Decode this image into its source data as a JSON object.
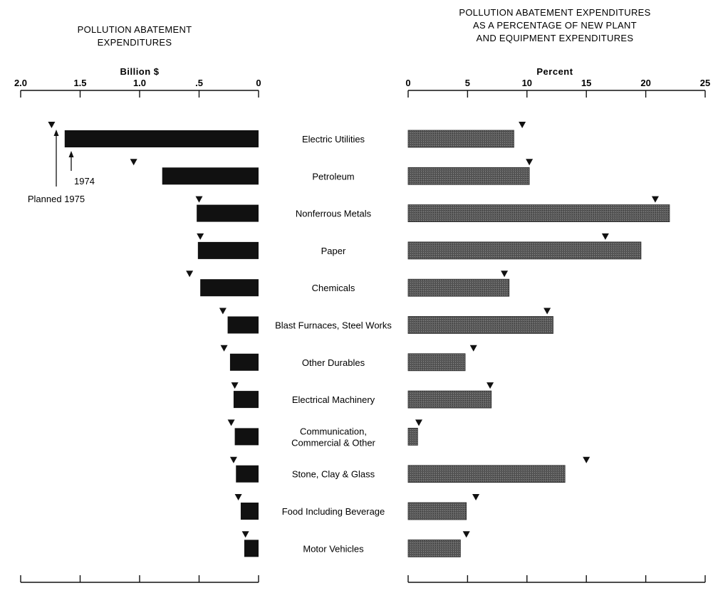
{
  "left_panel": {
    "title_lines": [
      "POLLUTION ABATEMENT",
      "EXPENDITURES"
    ]
  },
  "right_panel": {
    "title_lines": [
      "POLLUTION ABATEMENT EXPENDITURES",
      "AS A PERCENTAGE OF NEW PLANT",
      "AND EQUIPMENT EXPENDITURES"
    ]
  },
  "annotations": {
    "actual_label": "1974",
    "planned_label": "Planned 1975"
  },
  "colors": {
    "left_bar": "#111111",
    "right_bar": "#5a5a5a",
    "marker": "#111111",
    "axis": "#111111"
  },
  "chart_data": [
    {
      "type": "bar",
      "orientation": "horizontal",
      "direction": "right-to-left",
      "title": "POLLUTION ABATEMENT EXPENDITURES",
      "xlabel": "Billion $",
      "ylabel": "",
      "xlim": [
        0,
        2.0
      ],
      "ticks": [
        2.0,
        1.5,
        1.0,
        0.5,
        0
      ],
      "tick_labels": [
        "2.0",
        "1.5",
        "1.0",
        ".5",
        "0"
      ],
      "categories": [
        "Electric Utilities",
        "Petroleum",
        "Nonferrous Metals",
        "Paper",
        "Chemicals",
        "Blast Furnaces, Steel Works",
        "Other Durables",
        "Electrical Machinery",
        "Communication, Commercial & Other",
        "Stone, Clay & Glass",
        "Food Including Beverage",
        "Motor Vehicles"
      ],
      "series": [
        {
          "name": "1974",
          "mark": "bar",
          "values": [
            1.63,
            0.81,
            0.52,
            0.51,
            0.49,
            0.26,
            0.24,
            0.21,
            0.2,
            0.19,
            0.15,
            0.12
          ]
        },
        {
          "name": "Planned 1975",
          "mark": "triangle",
          "values": [
            1.74,
            1.05,
            0.5,
            0.49,
            0.58,
            0.3,
            0.29,
            0.2,
            0.23,
            0.21,
            0.17,
            0.11
          ]
        }
      ],
      "grid": false
    },
    {
      "type": "bar",
      "orientation": "horizontal",
      "title": "POLLUTION ABATEMENT EXPENDITURES AS A PERCENTAGE OF NEW PLANT AND EQUIPMENT EXPENDITURES",
      "xlabel": "Percent",
      "ylabel": "",
      "xlim": [
        0,
        25
      ],
      "ticks": [
        0,
        5,
        10,
        15,
        20,
        25
      ],
      "tick_labels": [
        "0",
        "5",
        "10",
        "15",
        "20",
        "25"
      ],
      "categories": [
        "Electric Utilities",
        "Petroleum",
        "Nonferrous Metals",
        "Paper",
        "Chemicals",
        "Blast Furnaces, Steel Works",
        "Other Durables",
        "Electrical Machinery",
        "Communication, Commercial & Other",
        "Stone, Clay & Glass",
        "Food Including Beverage",
        "Motor Vehicles"
      ],
      "series": [
        {
          "name": "1974",
          "mark": "bar",
          "values": [
            8.9,
            10.2,
            22.0,
            19.6,
            8.5,
            12.2,
            4.8,
            7.0,
            0.8,
            13.2,
            4.9,
            4.4
          ]
        },
        {
          "name": "Planned 1975",
          "mark": "triangle",
          "values": [
            9.6,
            10.2,
            20.8,
            16.6,
            8.1,
            11.7,
            5.5,
            6.9,
            0.9,
            15.0,
            5.7,
            4.9
          ]
        }
      ],
      "grid": false
    }
  ]
}
